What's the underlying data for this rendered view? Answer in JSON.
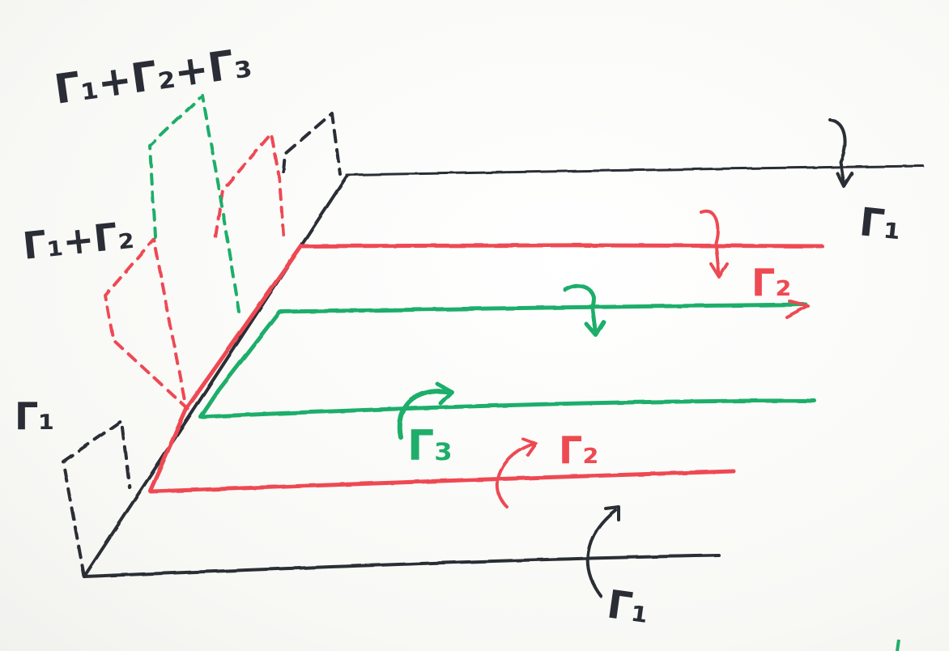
{
  "colors": {
    "black": "#2a2d35",
    "red": "#ee4a52",
    "green": "#1fae6a",
    "paper": "#fbfbf8"
  },
  "labels": {
    "sum123": "Γ₁+Γ₂+Γ₃",
    "sum12": "Γ₁+Γ₂",
    "g1_left": "Γ₁",
    "g1_top": "Γ₁",
    "g2_red_upper": "Γ₂",
    "g3_green": "Γ₃",
    "g2_red_lower": "Γ₂",
    "g1_bottom": "Γ₁"
  }
}
